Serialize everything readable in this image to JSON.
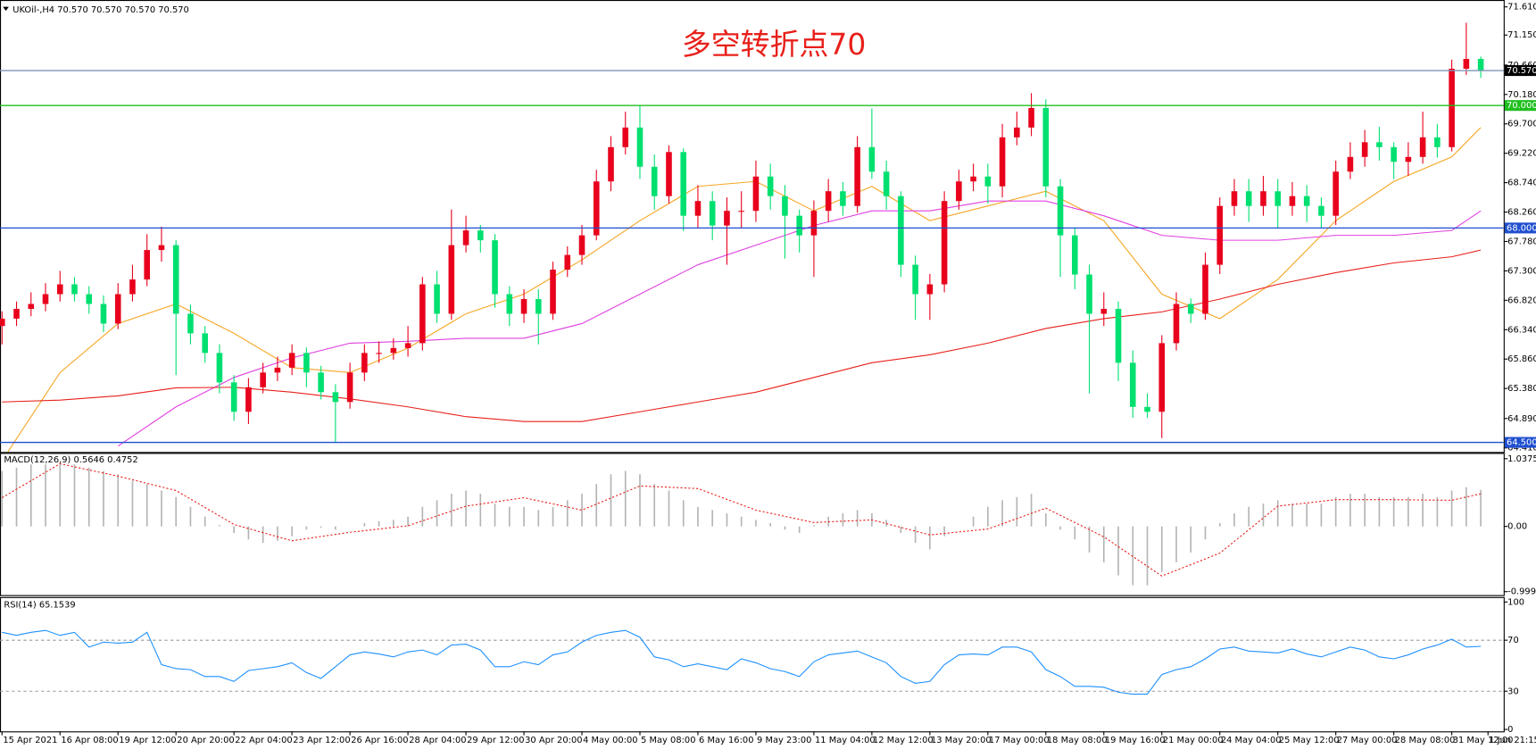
{
  "chart_data": [
    {
      "type": "candlestick",
      "label": "UKOil-,H4  70.570 70.570 70.570 70.570",
      "title": "多空转折点70",
      "up_color": "#e8001c",
      "down_color": "#00e070",
      "ohlc": [
        [
          66.4,
          66.64,
          66.1,
          66.52
        ],
        [
          66.52,
          66.8,
          66.4,
          66.68
        ],
        [
          66.68,
          66.95,
          66.56,
          66.76
        ],
        [
          66.76,
          67.1,
          66.64,
          66.92
        ],
        [
          66.92,
          67.3,
          66.8,
          67.08
        ],
        [
          67.08,
          67.2,
          66.8,
          66.92
        ],
        [
          66.92,
          67.05,
          66.6,
          66.76
        ],
        [
          66.76,
          66.9,
          66.3,
          66.44
        ],
        [
          66.44,
          67.1,
          66.35,
          66.92
        ],
        [
          66.92,
          67.4,
          66.8,
          67.16
        ],
        [
          67.16,
          67.9,
          67.05,
          67.64
        ],
        [
          67.64,
          68.02,
          67.45,
          67.72
        ],
        [
          67.72,
          67.8,
          65.6,
          66.6
        ],
        [
          66.6,
          66.75,
          66.1,
          66.28
        ],
        [
          66.28,
          66.4,
          65.8,
          65.96
        ],
        [
          65.96,
          66.1,
          65.3,
          65.48
        ],
        [
          65.48,
          65.6,
          64.85,
          65
        ],
        [
          65,
          65.55,
          64.8,
          65.4
        ],
        [
          65.4,
          65.8,
          65.3,
          65.64
        ],
        [
          65.64,
          65.9,
          65.5,
          65.72
        ],
        [
          65.72,
          66.1,
          65.6,
          65.96
        ],
        [
          65.96,
          66.05,
          65.4,
          65.64
        ],
        [
          65.64,
          65.75,
          65.2,
          65.32
        ],
        [
          65.32,
          65.45,
          64.5,
          65.16
        ],
        [
          65.16,
          65.8,
          65.05,
          65.64
        ],
        [
          65.64,
          66.1,
          65.5,
          65.96
        ],
        [
          65.96,
          66.15,
          65.8,
          65.96
        ],
        [
          65.96,
          66.2,
          65.85,
          66.04
        ],
        [
          66.04,
          66.4,
          65.9,
          66.12
        ],
        [
          66.12,
          67.2,
          66,
          67.08
        ],
        [
          67.08,
          67.3,
          66.45,
          66.6
        ],
        [
          66.6,
          68.3,
          66.5,
          67.72
        ],
        [
          67.72,
          68.2,
          67.6,
          67.96
        ],
        [
          67.96,
          68.05,
          67.6,
          67.8
        ],
        [
          67.8,
          67.9,
          66.7,
          66.92
        ],
        [
          66.92,
          67.05,
          66.4,
          66.6
        ],
        [
          66.6,
          67,
          66.45,
          66.84
        ],
        [
          66.84,
          67,
          66.1,
          66.6
        ],
        [
          66.6,
          67.45,
          66.5,
          67.32
        ],
        [
          67.32,
          67.7,
          67.2,
          67.56
        ],
        [
          67.56,
          68.05,
          67.4,
          67.88
        ],
        [
          67.88,
          68.95,
          67.8,
          68.76
        ],
        [
          68.76,
          69.5,
          68.6,
          69.32
        ],
        [
          69.32,
          69.9,
          69.2,
          69.64
        ],
        [
          69.64,
          70,
          68.8,
          69
        ],
        [
          69,
          69.2,
          68.3,
          68.52
        ],
        [
          68.52,
          69.35,
          68.4,
          69.24
        ],
        [
          69.24,
          69.3,
          67.95,
          68.2
        ],
        [
          68.2,
          68.7,
          68,
          68.44
        ],
        [
          68.44,
          68.6,
          67.8,
          68.04
        ],
        [
          68.04,
          68.5,
          67.4,
          68.28
        ],
        [
          68.28,
          68.6,
          68,
          68.28
        ],
        [
          68.28,
          69.1,
          68.1,
          68.84
        ],
        [
          68.84,
          69.05,
          68.3,
          68.52
        ],
        [
          68.52,
          68.7,
          67.5,
          68.2
        ],
        [
          68.2,
          68.3,
          67.6,
          67.88
        ],
        [
          67.88,
          68.45,
          67.2,
          68.28
        ],
        [
          68.28,
          68.8,
          68.1,
          68.6
        ],
        [
          68.6,
          68.75,
          68.2,
          68.36
        ],
        [
          68.36,
          69.5,
          68.25,
          69.32
        ],
        [
          69.32,
          69.95,
          68.8,
          68.92
        ],
        [
          68.92,
          69.1,
          68.3,
          68.52
        ],
        [
          68.52,
          68.6,
          67.2,
          67.4
        ],
        [
          67.4,
          67.55,
          66.5,
          66.92
        ],
        [
          66.92,
          67.25,
          66.5,
          67.08
        ],
        [
          67.08,
          68.6,
          66.95,
          68.44
        ],
        [
          68.44,
          68.95,
          68.3,
          68.76
        ],
        [
          68.76,
          69.05,
          68.6,
          68.84
        ],
        [
          68.84,
          69.05,
          68.4,
          68.68
        ],
        [
          68.68,
          69.7,
          68.5,
          69.48
        ],
        [
          69.48,
          69.9,
          69.35,
          69.64
        ],
        [
          69.64,
          70.2,
          69.5,
          69.96
        ],
        [
          69.96,
          70.1,
          68.5,
          68.68
        ],
        [
          68.68,
          68.8,
          67.2,
          67.88
        ],
        [
          67.88,
          68,
          67,
          67.24
        ],
        [
          67.24,
          67.4,
          65.3,
          66.6
        ],
        [
          66.6,
          66.95,
          66.4,
          66.68
        ],
        [
          66.68,
          66.8,
          65.5,
          65.8
        ],
        [
          65.8,
          66,
          64.9,
          65.08
        ],
        [
          65.08,
          65.3,
          64.9,
          65
        ],
        [
          65,
          66.25,
          64.57,
          66.12
        ],
        [
          66.12,
          66.95,
          66,
          66.76
        ],
        [
          66.76,
          66.85,
          66.45,
          66.6
        ],
        [
          66.6,
          67.6,
          66.5,
          67.4
        ],
        [
          67.4,
          68.5,
          67.25,
          68.36
        ],
        [
          68.36,
          68.8,
          68.2,
          68.6
        ],
        [
          68.6,
          68.8,
          68.1,
          68.36
        ],
        [
          68.36,
          68.85,
          68.2,
          68.6
        ],
        [
          68.6,
          68.8,
          68,
          68.36
        ],
        [
          68.36,
          68.75,
          68.2,
          68.52
        ],
        [
          68.52,
          68.7,
          68.1,
          68.36
        ],
        [
          68.36,
          68.5,
          68,
          68.2
        ],
        [
          68.2,
          69.1,
          68.05,
          68.92
        ],
        [
          68.92,
          69.4,
          68.8,
          69.16
        ],
        [
          69.16,
          69.6,
          69,
          69.4
        ],
        [
          69.4,
          69.65,
          69.1,
          69.32
        ],
        [
          69.32,
          69.4,
          68.8,
          69.08
        ],
        [
          69.08,
          69.4,
          68.85,
          69.16
        ],
        [
          69.16,
          69.9,
          69.05,
          69.48
        ],
        [
          69.48,
          69.7,
          69.15,
          69.32
        ],
        [
          69.32,
          70.75,
          69.25,
          70.6
        ],
        [
          70.6,
          71.35,
          70.5,
          70.76
        ],
        [
          70.76,
          70.8,
          70.45,
          70.57
        ]
      ],
      "overlays": {
        "x": [
          0,
          4,
          8,
          12,
          16,
          20,
          24,
          28,
          32,
          36,
          40,
          44,
          48,
          52,
          56,
          60,
          64,
          68,
          72,
          76,
          80,
          84,
          88,
          92,
          96,
          100,
          102
        ],
        "series": [
          {
            "color": "#f5a623",
            "values": [
              64.2,
              65.64,
              66.44,
              66.76,
              66.28,
              65.72,
              65.64,
              66.04,
              66.6,
              66.92,
              67.48,
              68.12,
              68.68,
              68.76,
              68.28,
              68.68,
              68.12,
              68.36,
              68.6,
              68.12,
              66.92,
              66.52,
              67.16,
              68.12,
              68.76,
              69.16,
              69.64
            ]
          },
          {
            "color": "#e040e0",
            "values": [
              null,
              null,
              64.44,
              65.08,
              65.56,
              65.88,
              66.12,
              66.15,
              66.2,
              66.2,
              66.44,
              66.92,
              67.4,
              67.72,
              68.04,
              68.28,
              68.28,
              68.44,
              68.44,
              68.2,
              67.88,
              67.8,
              67.8,
              67.88,
              67.88,
              67.96,
              68.28
            ]
          },
          {
            "color": "#e8201a",
            "values": [
              65.16,
              65.19,
              65.26,
              65.39,
              65.4,
              65.32,
              65.21,
              65.08,
              64.92,
              64.84,
              64.84,
              65,
              65.16,
              65.32,
              65.56,
              65.8,
              65.93,
              66.12,
              66.36,
              66.52,
              66.63,
              66.84,
              67.08,
              67.27,
              67.43,
              67.53,
              67.64
            ]
          }
        ]
      },
      "levels": [
        {
          "value": 70.57,
          "label": "70.570",
          "color": "#7f96b8",
          "box_color": "#000000"
        },
        {
          "value": 70,
          "label": "70.000",
          "color": "#1fc01f",
          "box_color": "#1fc01f"
        },
        {
          "value": 68,
          "label": "68.000",
          "color": "#1f4fd0",
          "box_color": "#1f4fd0"
        },
        {
          "value": 64.5,
          "label": "64.500",
          "color": "#1f4fd0",
          "box_color": "#1f4fd0"
        }
      ],
      "ylim": [
        64.36,
        71.69
      ],
      "yticks": [
        {
          "value": 71.61,
          "label": "71.610"
        },
        {
          "value": 71.15,
          "label": "71.150"
        },
        {
          "value": 70.66,
          "label": "70.660"
        },
        {
          "value": 70.18,
          "label": "70.180"
        },
        {
          "value": 69.7,
          "label": "69.700"
        },
        {
          "value": 69.22,
          "label": "69.220"
        },
        {
          "value": 68.74,
          "label": "68.740"
        },
        {
          "value": 68.26,
          "label": "68.260"
        },
        {
          "value": 67.78,
          "label": "67.780"
        },
        {
          "value": 67.3,
          "label": "67.300"
        },
        {
          "value": 66.82,
          "label": "66.820"
        },
        {
          "value": 66.34,
          "label": "66.340"
        },
        {
          "value": 65.86,
          "label": "65.860"
        },
        {
          "value": 65.38,
          "label": "65.380"
        },
        {
          "value": 64.89,
          "label": "64.890"
        },
        {
          "value": 64.41,
          "label": "64.410"
        }
      ],
      "xlim": [
        -0.14,
        103.58
      ],
      "xticks": [
        {
          "value": 0,
          "label": "15 Apr 2021"
        },
        {
          "value": 4,
          "label": "16 Apr 08:00"
        },
        {
          "value": 8,
          "label": "19 Apr 12:00"
        },
        {
          "value": 12,
          "label": "20 Apr 20:00"
        },
        {
          "value": 16,
          "label": "22 Apr 04:00"
        },
        {
          "value": 20,
          "label": "23 Apr 12:00"
        },
        {
          "value": 24,
          "label": "26 Apr 16:00"
        },
        {
          "value": 28,
          "label": "28 Apr 04:00"
        },
        {
          "value": 32,
          "label": "29 Apr 12:00"
        },
        {
          "value": 36,
          "label": "30 Apr 20:00"
        },
        {
          "value": 40,
          "label": "4 May 00:00"
        },
        {
          "value": 44,
          "label": "5 May 08:00"
        },
        {
          "value": 48,
          "label": "6 May 16:00"
        },
        {
          "value": 52,
          "label": "9 May 23:00"
        },
        {
          "value": 56,
          "label": "11 May 04:00"
        },
        {
          "value": 60,
          "label": "12 May 12:00"
        },
        {
          "value": 64,
          "label": "13 May 20:00"
        },
        {
          "value": 68,
          "label": "17 May 00:00"
        },
        {
          "value": 72,
          "label": "18 May 08:00"
        },
        {
          "value": 76,
          "label": "19 May 16:00"
        },
        {
          "value": 80,
          "label": "21 May 00:00"
        },
        {
          "value": 84,
          "label": "24 May 04:00"
        },
        {
          "value": 88,
          "label": "25 May 12:00"
        },
        {
          "value": 92,
          "label": "27 May 00:00"
        },
        {
          "value": 96,
          "label": "28 May 08:00"
        },
        {
          "value": 100,
          "label": "31 May 12:00"
        },
        {
          "value": 102.5,
          "label": "1 Jun 21:15"
        }
      ]
    },
    {
      "type": "macd",
      "label": "MACD(12,26,9) 0.5646 0.4752",
      "histogram_color": "#b4b4b4",
      "histogram": [
        0.85,
        0.9,
        0.95,
        0.95,
        0.95,
        0.95,
        0.9,
        0.85,
        0.8,
        0.7,
        0.65,
        0.55,
        0.45,
        0.3,
        0.15,
        0.02,
        -0.1,
        -0.2,
        -0.25,
        -0.22,
        -0.15,
        -0.05,
        -0.02,
        -0.05,
        0,
        0.05,
        0.08,
        0.1,
        0.15,
        0.3,
        0.4,
        0.5,
        0.55,
        0.5,
        0.35,
        0.3,
        0.3,
        0.25,
        0.3,
        0.4,
        0.5,
        0.65,
        0.8,
        0.85,
        0.8,
        0.65,
        0.55,
        0.4,
        0.3,
        0.25,
        0.2,
        0.15,
        0.1,
        0.05,
        -0.05,
        -0.1,
        0.02,
        0.15,
        0.2,
        0.25,
        0.2,
        0.1,
        -0.1,
        -0.25,
        -0.35,
        -0.15,
        0,
        0.15,
        0.3,
        0.4,
        0.45,
        0.5,
        0.2,
        -0.05,
        -0.2,
        -0.4,
        -0.55,
        -0.75,
        -0.9,
        -0.9,
        -0.7,
        -0.55,
        -0.4,
        -0.2,
        0.05,
        0.2,
        0.3,
        0.35,
        0.4,
        0.35,
        0.35,
        0.35,
        0.45,
        0.5,
        0.5,
        0.45,
        0.45,
        0.45,
        0.5,
        0.45,
        0.55,
        0.6,
        0.56
      ],
      "signal": {
        "color": "#e8201a",
        "x": [
          0,
          4,
          8,
          12,
          16,
          20,
          24,
          28,
          32,
          36,
          40,
          44,
          48,
          52,
          56,
          60,
          64,
          68,
          72,
          76,
          80,
          84,
          88,
          92,
          96,
          100,
          102
        ],
        "values": [
          0.44,
          0.96,
          0.77,
          0.55,
          0.03,
          -0.22,
          -0.09,
          0.01,
          0.31,
          0.44,
          0.25,
          0.62,
          0.58,
          0.25,
          0.06,
          0.1,
          -0.13,
          -0.04,
          0.28,
          -0.16,
          -0.76,
          -0.41,
          0.31,
          0.41,
          0.41,
          0.4,
          0.5
        ]
      },
      "ylim": [
        -1.037,
        1.111
      ],
      "yticks": [
        1.0375,
        {
          "value": 0,
          "label": "0.00"
        },
        -0.9994
      ]
    },
    {
      "type": "rsi",
      "label": "RSI(14) 65.1539",
      "color": "#1e90ff",
      "values": [
        76.2,
        73.8,
        76.2,
        77.7,
        73.8,
        76.2,
        64.6,
        68.5,
        67.7,
        68.5,
        76.2,
        50.8,
        47.7,
        46.9,
        41.5,
        41.5,
        37.7,
        46.2,
        47.7,
        49.2,
        52.3,
        44.6,
        40,
        49.2,
        58.5,
        60.8,
        59.2,
        56.9,
        60.8,
        62.3,
        58.5,
        66.2,
        66.9,
        62.3,
        49.2,
        49.2,
        53.1,
        50.8,
        58.5,
        60.8,
        68.5,
        73.8,
        76.2,
        77.7,
        72.3,
        56.9,
        54.6,
        49.2,
        51.5,
        49.2,
        46.9,
        55.4,
        52.3,
        47.7,
        45.4,
        41.5,
        53.1,
        58.5,
        60,
        61.5,
        56.9,
        52.3,
        41.5,
        36.2,
        37.7,
        50.8,
        58.5,
        59.2,
        58.5,
        64.6,
        64.6,
        60.8,
        46.9,
        41.5,
        33.8,
        33.8,
        33.1,
        29.2,
        27.7,
        27.7,
        43.1,
        46.9,
        49.2,
        55.4,
        63.1,
        64.6,
        61.5,
        60.8,
        60,
        63.1,
        59.2,
        56.9,
        60.8,
        64.6,
        62.3,
        56.9,
        55.4,
        58.5,
        63.1,
        66.2,
        70.8,
        64.6,
        65.2
      ],
      "levels": [
        70,
        30
      ],
      "ylim": [
        -1.5,
        103.1
      ],
      "yticks": [
        100,
        70,
        30,
        0
      ]
    }
  ]
}
